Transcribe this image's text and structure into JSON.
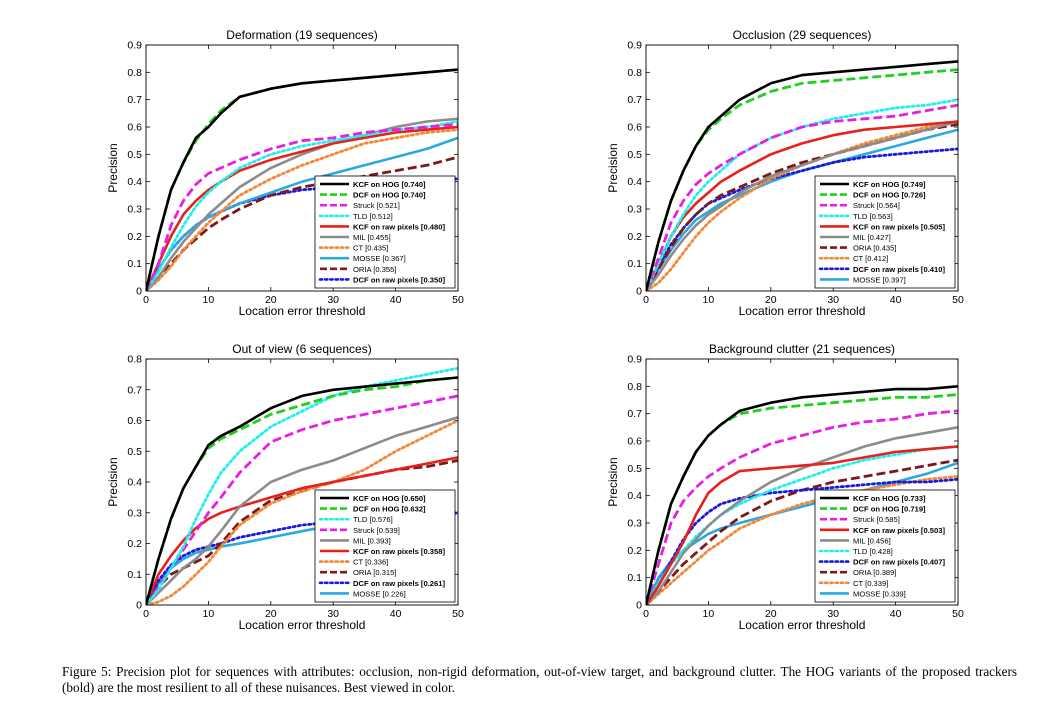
{
  "caption": "Figure 5: Precision plot for sequences with attributes: occlusion, non-rigid deformation, out-of-view target, and background clutter. The HOG variants of the proposed trackers (bold) are the most resilient to all of these nuisances. Best viewed in color.",
  "styles": {
    "KCF on HOG": {
      "color": "#000000",
      "dash": "solid",
      "bold": true
    },
    "DCF on HOG": {
      "color": "#1fd11f",
      "dash": "dash",
      "bold": true
    },
    "Struck": {
      "color": "#e61ee6",
      "dash": "dash",
      "bold": false
    },
    "TLD": {
      "color": "#22eeee",
      "dash": "dot",
      "bold": false
    },
    "KCF on raw pixels": {
      "color": "#e8201a",
      "dash": "solid",
      "bold": true
    },
    "MIL": {
      "color": "#8c8c8c",
      "dash": "solid",
      "bold": false
    },
    "CT": {
      "color": "#f08a3a",
      "dash": "dot",
      "bold": false
    },
    "MOSSE": {
      "color": "#2aa8e0",
      "dash": "solid",
      "bold": false
    },
    "ORIA": {
      "color": "#801818",
      "dash": "dash",
      "bold": false
    },
    "DCF on raw pixels": {
      "color": "#1a1ad9",
      "dash": "dot",
      "bold": true
    }
  },
  "chart_data": [
    {
      "type": "line",
      "title": "Deformation (19 sequences)",
      "xlabel": "Location error threshold",
      "ylabel": "Precision",
      "xlim": [
        0,
        50
      ],
      "ylim": [
        0,
        0.9
      ],
      "xticks": [
        0,
        10,
        20,
        30,
        40,
        50
      ],
      "yticks": [
        0,
        0.1,
        0.2,
        0.3,
        0.4,
        0.5,
        0.6,
        0.7,
        0.8,
        0.9
      ],
      "x": [
        0,
        2,
        4,
        6,
        8,
        10,
        12,
        15,
        20,
        25,
        30,
        35,
        40,
        45,
        50
      ],
      "legend_position": "bottom-right",
      "series": [
        {
          "name": "KCF on HOG",
          "legend": "KCF on HOG [0.740]",
          "values": [
            0,
            0.2,
            0.37,
            0.47,
            0.56,
            0.6,
            0.65,
            0.71,
            0.74,
            0.76,
            0.77,
            0.78,
            0.79,
            0.8,
            0.81
          ]
        },
        {
          "name": "DCF on HOG",
          "legend": "DCF on HOG [0.740]",
          "values": [
            0,
            0.2,
            0.37,
            0.47,
            0.55,
            0.61,
            0.66,
            0.71,
            0.74,
            0.76,
            0.77,
            0.78,
            0.79,
            0.8,
            0.81
          ]
        },
        {
          "name": "Struck",
          "legend": "Struck [0.521]",
          "values": [
            0,
            0.1,
            0.24,
            0.33,
            0.39,
            0.43,
            0.45,
            0.48,
            0.52,
            0.55,
            0.56,
            0.58,
            0.59,
            0.6,
            0.61
          ]
        },
        {
          "name": "TLD",
          "legend": "TLD [0.512]",
          "values": [
            0,
            0.07,
            0.16,
            0.24,
            0.31,
            0.36,
            0.4,
            0.45,
            0.5,
            0.53,
            0.55,
            0.57,
            0.59,
            0.6,
            0.62
          ]
        },
        {
          "name": "KCF on raw pixels",
          "legend": "KCF on raw pixels [0.480]",
          "values": [
            0,
            0.1,
            0.2,
            0.28,
            0.33,
            0.37,
            0.4,
            0.44,
            0.48,
            0.51,
            0.54,
            0.56,
            0.58,
            0.59,
            0.6
          ]
        },
        {
          "name": "MIL",
          "legend": "MIL [0.455]",
          "values": [
            0,
            0.05,
            0.12,
            0.18,
            0.23,
            0.28,
            0.32,
            0.38,
            0.45,
            0.5,
            0.54,
            0.57,
            0.6,
            0.62,
            0.63
          ]
        },
        {
          "name": "CT",
          "legend": "CT [0.435]",
          "values": [
            0,
            0.04,
            0.09,
            0.15,
            0.2,
            0.25,
            0.29,
            0.35,
            0.41,
            0.46,
            0.5,
            0.54,
            0.56,
            0.58,
            0.59
          ]
        },
        {
          "name": "MOSSE",
          "legend": "MOSSE [0.367]",
          "values": [
            0,
            0.08,
            0.15,
            0.2,
            0.24,
            0.27,
            0.29,
            0.32,
            0.36,
            0.4,
            0.43,
            0.46,
            0.49,
            0.52,
            0.56
          ]
        },
        {
          "name": "ORIA",
          "legend": "ORIA [0.355]",
          "values": [
            0,
            0.05,
            0.1,
            0.15,
            0.19,
            0.23,
            0.26,
            0.3,
            0.35,
            0.38,
            0.4,
            0.42,
            0.44,
            0.46,
            0.49
          ]
        },
        {
          "name": "DCF on raw pixels",
          "legend": "DCF on raw pixels [0.350]",
          "values": [
            0,
            0.08,
            0.15,
            0.2,
            0.24,
            0.27,
            0.29,
            0.32,
            0.35,
            0.37,
            0.38,
            0.39,
            0.4,
            0.41,
            0.41
          ]
        }
      ]
    },
    {
      "type": "line",
      "title": "Occlusion (29 sequences)",
      "xlabel": "Location error threshold",
      "ylabel": "Precision",
      "xlim": [
        0,
        50
      ],
      "ylim": [
        0,
        0.9
      ],
      "xticks": [
        0,
        10,
        20,
        30,
        40,
        50
      ],
      "yticks": [
        0,
        0.1,
        0.2,
        0.3,
        0.4,
        0.5,
        0.6,
        0.7,
        0.8,
        0.9
      ],
      "x": [
        0,
        2,
        4,
        6,
        8,
        10,
        12,
        15,
        20,
        25,
        30,
        35,
        40,
        45,
        50
      ],
      "legend_position": "bottom-right",
      "series": [
        {
          "name": "KCF on HOG",
          "legend": "KCF on HOG [0.749]",
          "values": [
            0,
            0.18,
            0.33,
            0.44,
            0.53,
            0.6,
            0.64,
            0.7,
            0.76,
            0.79,
            0.8,
            0.81,
            0.82,
            0.83,
            0.84
          ]
        },
        {
          "name": "DCF on HOG",
          "legend": "DCF on HOG [0.726]",
          "values": [
            0,
            0.18,
            0.33,
            0.44,
            0.53,
            0.59,
            0.63,
            0.68,
            0.73,
            0.76,
            0.77,
            0.78,
            0.79,
            0.8,
            0.81
          ]
        },
        {
          "name": "Struck",
          "legend": "Struck [0.564]",
          "values": [
            0,
            0.12,
            0.25,
            0.33,
            0.39,
            0.43,
            0.46,
            0.5,
            0.56,
            0.6,
            0.62,
            0.63,
            0.64,
            0.66,
            0.68
          ]
        },
        {
          "name": "TLD",
          "legend": "TLD [0.563]",
          "values": [
            0,
            0.1,
            0.2,
            0.28,
            0.35,
            0.4,
            0.44,
            0.5,
            0.56,
            0.6,
            0.63,
            0.65,
            0.67,
            0.68,
            0.7
          ]
        },
        {
          "name": "KCF on raw pixels",
          "legend": "KCF on raw pixels [0.505]",
          "values": [
            0,
            0.1,
            0.2,
            0.27,
            0.32,
            0.36,
            0.4,
            0.44,
            0.5,
            0.54,
            0.57,
            0.59,
            0.6,
            0.61,
            0.62
          ]
        },
        {
          "name": "MIL",
          "legend": "MIL [0.427]",
          "values": [
            0,
            0.06,
            0.13,
            0.19,
            0.24,
            0.28,
            0.31,
            0.36,
            0.42,
            0.46,
            0.5,
            0.53,
            0.56,
            0.59,
            0.62
          ]
        },
        {
          "name": "ORIA",
          "legend": "ORIA [0.435]",
          "values": [
            0,
            0.08,
            0.16,
            0.23,
            0.28,
            0.32,
            0.35,
            0.38,
            0.43,
            0.47,
            0.5,
            0.53,
            0.56,
            0.59,
            0.61
          ]
        },
        {
          "name": "CT",
          "legend": "CT [0.412]",
          "values": [
            0,
            0.03,
            0.08,
            0.14,
            0.2,
            0.25,
            0.29,
            0.34,
            0.41,
            0.46,
            0.5,
            0.54,
            0.57,
            0.6,
            0.62
          ]
        },
        {
          "name": "DCF on raw pixels",
          "legend": "DCF on raw pixels [0.410]",
          "values": [
            0,
            0.09,
            0.17,
            0.23,
            0.28,
            0.32,
            0.34,
            0.37,
            0.41,
            0.44,
            0.47,
            0.49,
            0.5,
            0.51,
            0.52
          ]
        },
        {
          "name": "MOSSE",
          "legend": "MOSSE [0.397]",
          "values": [
            0,
            0.08,
            0.15,
            0.21,
            0.26,
            0.29,
            0.32,
            0.35,
            0.4,
            0.44,
            0.47,
            0.5,
            0.53,
            0.56,
            0.59
          ]
        }
      ]
    },
    {
      "type": "line",
      "title": "Out of view (6 sequences)",
      "xlabel": "Location error threshold",
      "ylabel": "Precision",
      "xlim": [
        0,
        50
      ],
      "ylim": [
        0,
        0.8
      ],
      "xticks": [
        0,
        10,
        20,
        30,
        40,
        50
      ],
      "yticks": [
        0,
        0.1,
        0.2,
        0.3,
        0.4,
        0.5,
        0.6,
        0.7,
        0.8
      ],
      "x": [
        0,
        2,
        4,
        6,
        8,
        10,
        12,
        15,
        20,
        25,
        30,
        35,
        40,
        45,
        50
      ],
      "legend_position": "bottom-right",
      "series": [
        {
          "name": "KCF on HOG",
          "legend": "KCF on HOG [0.650]",
          "values": [
            0,
            0.15,
            0.28,
            0.38,
            0.45,
            0.52,
            0.55,
            0.58,
            0.64,
            0.68,
            0.7,
            0.71,
            0.72,
            0.73,
            0.74
          ]
        },
        {
          "name": "DCF on HOG",
          "legend": "DCF on HOG [0.632]",
          "values": [
            0,
            0.15,
            0.28,
            0.38,
            0.45,
            0.51,
            0.54,
            0.57,
            0.62,
            0.65,
            0.68,
            0.7,
            0.71,
            0.73,
            0.74
          ]
        },
        {
          "name": "TLD",
          "legend": "TLD [0.576]",
          "values": [
            0,
            0.05,
            0.12,
            0.19,
            0.28,
            0.36,
            0.43,
            0.5,
            0.58,
            0.63,
            0.68,
            0.71,
            0.73,
            0.75,
            0.77
          ]
        },
        {
          "name": "Struck",
          "legend": "Struck [0.539]",
          "values": [
            0,
            0.06,
            0.12,
            0.18,
            0.24,
            0.3,
            0.35,
            0.43,
            0.53,
            0.57,
            0.6,
            0.62,
            0.64,
            0.66,
            0.68
          ]
        },
        {
          "name": "MIL",
          "legend": "MIL [0.393]",
          "values": [
            0,
            0.04,
            0.08,
            0.12,
            0.15,
            0.19,
            0.24,
            0.32,
            0.4,
            0.44,
            0.47,
            0.51,
            0.55,
            0.58,
            0.61
          ]
        },
        {
          "name": "KCF on raw pixels",
          "legend": "KCF on raw pixels [0.358]",
          "values": [
            0,
            0.1,
            0.16,
            0.21,
            0.25,
            0.28,
            0.3,
            0.32,
            0.35,
            0.38,
            0.4,
            0.42,
            0.44,
            0.46,
            0.48
          ]
        },
        {
          "name": "CT",
          "legend": "CT [0.336]",
          "values": [
            0,
            0.01,
            0.03,
            0.06,
            0.1,
            0.14,
            0.19,
            0.26,
            0.33,
            0.37,
            0.4,
            0.44,
            0.5,
            0.55,
            0.6
          ]
        },
        {
          "name": "ORIA",
          "legend": "ORIA [0.315]",
          "values": [
            0,
            0.06,
            0.1,
            0.12,
            0.14,
            0.16,
            0.2,
            0.27,
            0.34,
            0.37,
            0.4,
            0.42,
            0.44,
            0.45,
            0.47
          ]
        },
        {
          "name": "DCF on raw pixels",
          "legend": "DCF on raw pixels [0.261]",
          "values": [
            0,
            0.08,
            0.13,
            0.16,
            0.18,
            0.19,
            0.2,
            0.22,
            0.24,
            0.26,
            0.27,
            0.28,
            0.28,
            0.29,
            0.3
          ]
        },
        {
          "name": "MOSSE",
          "legend": "MOSSE [0.226]",
          "values": [
            0,
            0.07,
            0.12,
            0.15,
            0.17,
            0.18,
            0.19,
            0.2,
            0.22,
            0.24,
            0.26,
            0.27,
            0.28,
            0.29,
            0.3
          ]
        }
      ]
    },
    {
      "type": "line",
      "title": "Background clutter (21 sequences)",
      "xlabel": "Location error threshold",
      "ylabel": "Precision",
      "xlim": [
        0,
        50
      ],
      "ylim": [
        0,
        0.9
      ],
      "xticks": [
        0,
        10,
        20,
        30,
        40,
        50
      ],
      "yticks": [
        0,
        0.1,
        0.2,
        0.3,
        0.4,
        0.5,
        0.6,
        0.7,
        0.8,
        0.9
      ],
      "x": [
        0,
        2,
        4,
        6,
        8,
        10,
        12,
        15,
        20,
        25,
        30,
        35,
        40,
        45,
        50
      ],
      "legend_position": "bottom-right",
      "series": [
        {
          "name": "KCF on HOG",
          "legend": "KCF on HOG [0.733]",
          "values": [
            0,
            0.2,
            0.37,
            0.47,
            0.56,
            0.62,
            0.66,
            0.71,
            0.74,
            0.76,
            0.77,
            0.78,
            0.79,
            0.79,
            0.8
          ]
        },
        {
          "name": "DCF on HOG",
          "legend": "DCF on HOG [0.719]",
          "values": [
            0,
            0.2,
            0.37,
            0.47,
            0.56,
            0.62,
            0.66,
            0.7,
            0.72,
            0.73,
            0.74,
            0.75,
            0.76,
            0.76,
            0.77
          ]
        },
        {
          "name": "Struck",
          "legend": "Struck [0.585]",
          "values": [
            0,
            0.15,
            0.3,
            0.38,
            0.43,
            0.47,
            0.5,
            0.54,
            0.59,
            0.62,
            0.65,
            0.67,
            0.68,
            0.7,
            0.71
          ]
        },
        {
          "name": "KCF on raw pixels",
          "legend": "KCF on raw pixels [0.503]",
          "values": [
            0,
            0.07,
            0.15,
            0.23,
            0.33,
            0.41,
            0.45,
            0.49,
            0.5,
            0.51,
            0.52,
            0.54,
            0.56,
            0.57,
            0.58
          ]
        },
        {
          "name": "MIL",
          "legend": "MIL [0.456]",
          "values": [
            0,
            0.05,
            0.12,
            0.19,
            0.24,
            0.29,
            0.33,
            0.38,
            0.45,
            0.5,
            0.54,
            0.58,
            0.61,
            0.63,
            0.65
          ]
        },
        {
          "name": "TLD",
          "legend": "TLD [0.428]",
          "values": [
            0,
            0.08,
            0.15,
            0.2,
            0.25,
            0.29,
            0.33,
            0.37,
            0.42,
            0.46,
            0.5,
            0.53,
            0.55,
            0.57,
            0.58
          ]
        },
        {
          "name": "DCF on raw pixels",
          "legend": "DCF on raw pixels [0.407]",
          "values": [
            0,
            0.08,
            0.16,
            0.24,
            0.3,
            0.34,
            0.37,
            0.39,
            0.41,
            0.42,
            0.43,
            0.44,
            0.45,
            0.45,
            0.46
          ]
        },
        {
          "name": "ORIA",
          "legend": "ORIA [0.389]",
          "values": [
            0,
            0.05,
            0.1,
            0.15,
            0.19,
            0.23,
            0.27,
            0.32,
            0.38,
            0.42,
            0.45,
            0.47,
            0.49,
            0.51,
            0.53
          ]
        },
        {
          "name": "CT",
          "legend": "CT [0.339]",
          "values": [
            0,
            0.04,
            0.08,
            0.12,
            0.16,
            0.2,
            0.23,
            0.28,
            0.33,
            0.37,
            0.4,
            0.42,
            0.44,
            0.46,
            0.47
          ]
        },
        {
          "name": "MOSSE",
          "legend": "MOSSE [0.339]",
          "values": [
            0,
            0.1,
            0.16,
            0.2,
            0.23,
            0.26,
            0.28,
            0.3,
            0.33,
            0.36,
            0.39,
            0.42,
            0.45,
            0.48,
            0.52
          ]
        }
      ]
    }
  ]
}
